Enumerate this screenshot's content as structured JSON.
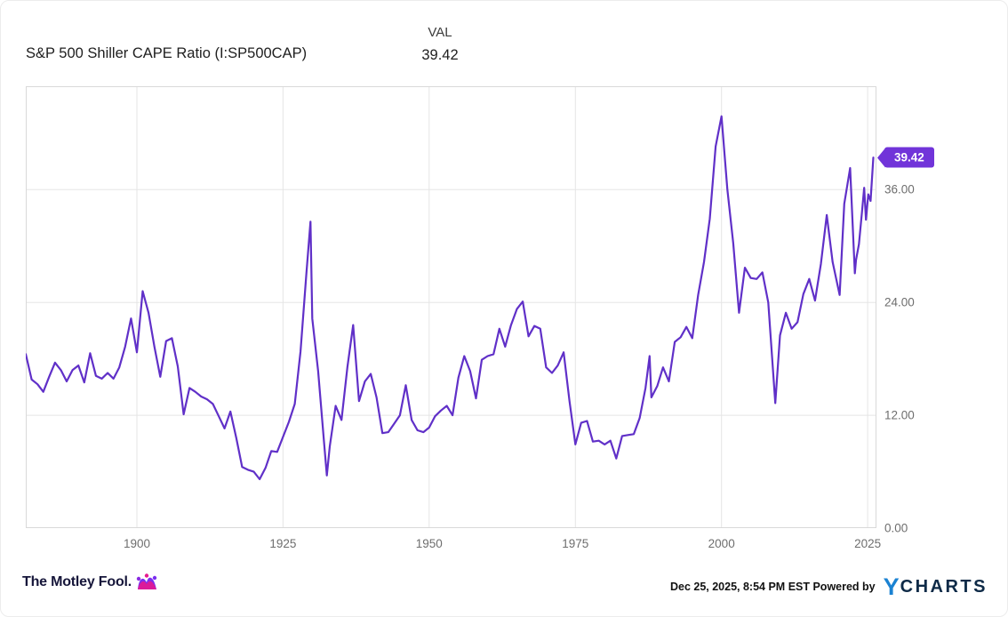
{
  "header": {
    "title": "S&P 500 Shiller CAPE Ratio (I:SP500CAP)",
    "val_label": "VAL",
    "val_value": "39.42"
  },
  "chart_data": {
    "type": "line",
    "title": "S&P 500 Shiller CAPE Ratio (I:SP500CAP)",
    "xlabel": "",
    "ylabel": "",
    "xlim": [
      1881,
      2026.5
    ],
    "ylim": [
      0,
      47
    ],
    "x_ticks": [
      1900,
      1925,
      1950,
      1975,
      2000,
      2025
    ],
    "y_ticks": [
      0,
      12,
      24,
      36
    ],
    "y_tick_labels": [
      "0.00",
      "12.00",
      "24.00",
      "36.00"
    ],
    "grid": true,
    "legend": false,
    "line_color": "#6030c8",
    "grid_color": "#e5e5e5",
    "border_color": "#d9d9d9",
    "badge_color": "#7134d9",
    "last_value_label": "39.42",
    "series": [
      {
        "name": "S&P 500 Shiller CAPE Ratio",
        "points": [
          [
            1881,
            18.5
          ],
          [
            1882,
            15.8
          ],
          [
            1883,
            15.3
          ],
          [
            1884,
            14.5
          ],
          [
            1885,
            16.1
          ],
          [
            1886,
            17.6
          ],
          [
            1887,
            16.8
          ],
          [
            1888,
            15.6
          ],
          [
            1889,
            16.8
          ],
          [
            1890,
            17.3
          ],
          [
            1891,
            15.5
          ],
          [
            1892,
            18.6
          ],
          [
            1893,
            16.2
          ],
          [
            1894,
            15.9
          ],
          [
            1895,
            16.5
          ],
          [
            1896,
            15.9
          ],
          [
            1897,
            17.1
          ],
          [
            1898,
            19.3
          ],
          [
            1899,
            22.3
          ],
          [
            1900,
            18.7
          ],
          [
            1901,
            25.2
          ],
          [
            1902,
            22.9
          ],
          [
            1903,
            19.3
          ],
          [
            1904,
            16.1
          ],
          [
            1905,
            19.9
          ],
          [
            1906,
            20.2
          ],
          [
            1907,
            17.2
          ],
          [
            1908,
            12.1
          ],
          [
            1909,
            14.9
          ],
          [
            1910,
            14.5
          ],
          [
            1911,
            14.0
          ],
          [
            1912,
            13.7
          ],
          [
            1913,
            13.2
          ],
          [
            1914,
            11.9
          ],
          [
            1915,
            10.6
          ],
          [
            1916,
            12.4
          ],
          [
            1917,
            9.6
          ],
          [
            1918,
            6.5
          ],
          [
            1919,
            6.2
          ],
          [
            1920,
            6.0
          ],
          [
            1921,
            5.2
          ],
          [
            1922,
            6.4
          ],
          [
            1923,
            8.2
          ],
          [
            1924,
            8.1
          ],
          [
            1925,
            9.7
          ],
          [
            1926,
            11.3
          ],
          [
            1927,
            13.2
          ],
          [
            1928,
            18.8
          ],
          [
            1929,
            27.1
          ],
          [
            1929.7,
            32.6
          ],
          [
            1930,
            22.3
          ],
          [
            1931,
            16.7
          ],
          [
            1932,
            9.3
          ],
          [
            1932.5,
            5.6
          ],
          [
            1933,
            8.7
          ],
          [
            1934,
            13.0
          ],
          [
            1935,
            11.5
          ],
          [
            1936,
            17.1
          ],
          [
            1937,
            21.6
          ],
          [
            1938,
            13.5
          ],
          [
            1939,
            15.6
          ],
          [
            1940,
            16.4
          ],
          [
            1941,
            13.9
          ],
          [
            1942,
            10.1
          ],
          [
            1943,
            10.2
          ],
          [
            1944,
            11.1
          ],
          [
            1945,
            12.0
          ],
          [
            1946,
            15.2
          ],
          [
            1947,
            11.5
          ],
          [
            1948,
            10.4
          ],
          [
            1949,
            10.2
          ],
          [
            1950,
            10.7
          ],
          [
            1951,
            11.9
          ],
          [
            1952,
            12.5
          ],
          [
            1953,
            13.0
          ],
          [
            1954,
            12.0
          ],
          [
            1955,
            16.0
          ],
          [
            1956,
            18.3
          ],
          [
            1957,
            16.7
          ],
          [
            1958,
            13.8
          ],
          [
            1959,
            17.9
          ],
          [
            1960,
            18.3
          ],
          [
            1961,
            18.5
          ],
          [
            1962,
            21.2
          ],
          [
            1963,
            19.3
          ],
          [
            1964,
            21.6
          ],
          [
            1965,
            23.3
          ],
          [
            1966,
            24.1
          ],
          [
            1967,
            20.4
          ],
          [
            1968,
            21.5
          ],
          [
            1969,
            21.2
          ],
          [
            1970,
            17.1
          ],
          [
            1971,
            16.5
          ],
          [
            1972,
            17.3
          ],
          [
            1973,
            18.7
          ],
          [
            1974,
            13.5
          ],
          [
            1975,
            8.9
          ],
          [
            1976,
            11.2
          ],
          [
            1977,
            11.4
          ],
          [
            1978,
            9.2
          ],
          [
            1979,
            9.3
          ],
          [
            1980,
            8.9
          ],
          [
            1981,
            9.3
          ],
          [
            1982,
            7.4
          ],
          [
            1983,
            9.8
          ],
          [
            1984,
            9.9
          ],
          [
            1985,
            10.0
          ],
          [
            1986,
            11.7
          ],
          [
            1987,
            14.9
          ],
          [
            1987.7,
            18.3
          ],
          [
            1988,
            13.9
          ],
          [
            1989,
            15.1
          ],
          [
            1990,
            17.1
          ],
          [
            1991,
            15.6
          ],
          [
            1992,
            19.8
          ],
          [
            1993,
            20.3
          ],
          [
            1994,
            21.4
          ],
          [
            1995,
            20.2
          ],
          [
            1996,
            24.8
          ],
          [
            1997,
            28.3
          ],
          [
            1998,
            32.9
          ],
          [
            1999,
            40.6
          ],
          [
            2000,
            43.8
          ],
          [
            2001,
            36.0
          ],
          [
            2002,
            30.3
          ],
          [
            2003,
            22.9
          ],
          [
            2004,
            27.7
          ],
          [
            2005,
            26.6
          ],
          [
            2006,
            26.5
          ],
          [
            2007,
            27.2
          ],
          [
            2008,
            24.0
          ],
          [
            2009.2,
            13.3
          ],
          [
            2010,
            20.5
          ],
          [
            2011,
            22.9
          ],
          [
            2012,
            21.2
          ],
          [
            2013,
            21.9
          ],
          [
            2014,
            24.9
          ],
          [
            2015,
            26.5
          ],
          [
            2016,
            24.2
          ],
          [
            2017,
            28.1
          ],
          [
            2018,
            33.3
          ],
          [
            2019,
            28.3
          ],
          [
            2020.2,
            24.8
          ],
          [
            2021,
            34.5
          ],
          [
            2022,
            38.3
          ],
          [
            2022.8,
            27.1
          ],
          [
            2023,
            28.5
          ],
          [
            2023.5,
            30.2
          ],
          [
            2024,
            33.5
          ],
          [
            2024.4,
            36.2
          ],
          [
            2024.7,
            32.8
          ],
          [
            2025.1,
            35.5
          ],
          [
            2025.5,
            34.8
          ],
          [
            2025.97,
            39.42
          ]
        ]
      }
    ]
  },
  "footer": {
    "brand": "The Motley Fool.",
    "attribution": "Dec 25, 2025, 8:54 PM EST Powered by",
    "ycharts_y": "Y",
    "ycharts_rest": "CHARTS"
  },
  "colors": {
    "line": "#6030c8",
    "badge": "#7134d9",
    "grid": "#e5e5e5",
    "plot_border": "#d9d9d9",
    "tick_text": "#6e6e6e",
    "title_text": "#202020",
    "mf_brand": "#16163a",
    "ycharts_blue": "#1b82d2",
    "ycharts_dark": "#0e2a47"
  }
}
